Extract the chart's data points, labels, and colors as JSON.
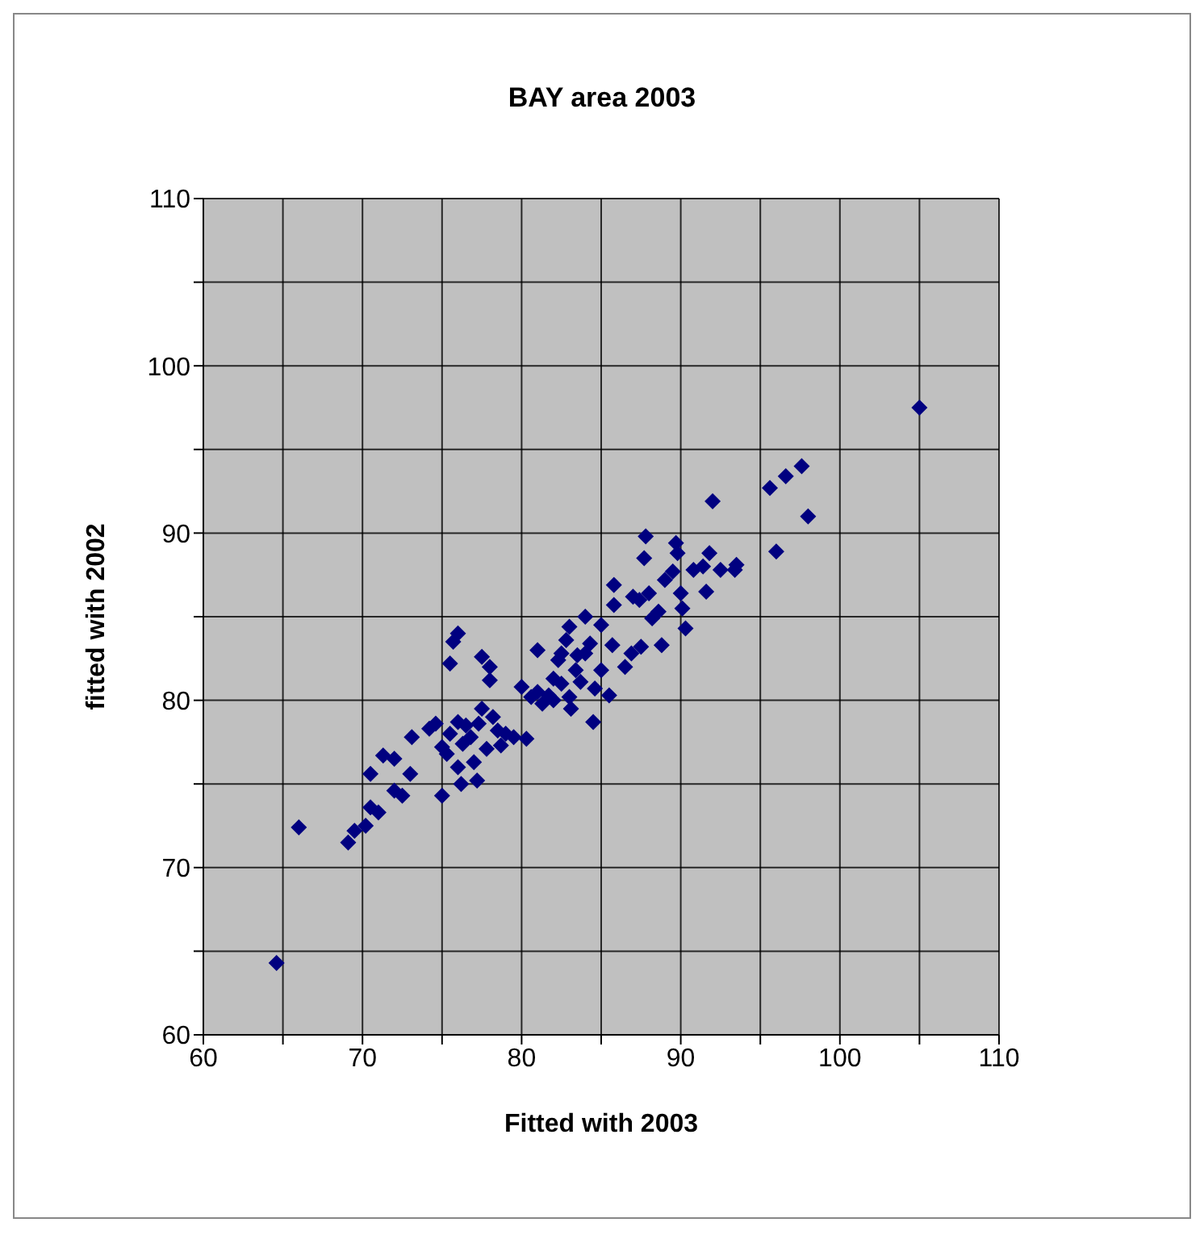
{
  "chart_data": {
    "type": "scatter",
    "title": "BAY area 2003",
    "xlabel": "Fitted with 2003",
    "ylabel": "fitted with 2002",
    "xlim": [
      60,
      110
    ],
    "ylim": [
      60,
      110
    ],
    "xticks": [
      60,
      {
        "value": 65,
        "label": null
      },
      70,
      {
        "value": 75,
        "label": null
      },
      80,
      {
        "value": 85,
        "label": null
      },
      90,
      {
        "value": 95,
        "label": null
      },
      100,
      {
        "value": 105,
        "label": null
      },
      110
    ],
    "yticks": [
      60,
      {
        "value": 65,
        "label": null
      },
      70,
      {
        "value": 75,
        "label": null
      },
      80,
      {
        "value": 85,
        "label": null
      },
      90,
      {
        "value": 95,
        "label": null
      },
      100,
      {
        "value": 105,
        "label": null
      },
      110
    ],
    "grid": true,
    "marker": "diamond",
    "legend": false,
    "series": [
      {
        "color": "#000080",
        "x": [
          64.6,
          66,
          69.1,
          69.5,
          70.2,
          70.5,
          70.5,
          71,
          71.3,
          72,
          72,
          72.5,
          73,
          73.1,
          74.2,
          74.6,
          75,
          75,
          75.3,
          75.5,
          75.5,
          75.7,
          76,
          76,
          76,
          76.2,
          76.3,
          76.5,
          76.8,
          77,
          77.2,
          77.3,
          77.5,
          77.5,
          77.8,
          78,
          78,
          78.2,
          78.5,
          78.7,
          79,
          79.5,
          80,
          80.3,
          80.6,
          81,
          81,
          81.3,
          81.7,
          82,
          82,
          82.3,
          82.5,
          82.5,
          82.8,
          83,
          83,
          83.1,
          83.4,
          83.5,
          83.7,
          84,
          84,
          84.3,
          84.5,
          84.6,
          85,
          85,
          85.5,
          85.7,
          85.8,
          85.8,
          86.5,
          86.9,
          87,
          87.4,
          87.5,
          87.7,
          87.8,
          88,
          88.2,
          88.6,
          88.8,
          89,
          89.5,
          89.7,
          89.8,
          90,
          90.1,
          90.3,
          90.8,
          91.4,
          91.6,
          91.8,
          92,
          92.5,
          93.4,
          93.5,
          95.6,
          96,
          96.6,
          97.6,
          98,
          105
        ],
        "values": [
          64.3,
          72.4,
          71.5,
          72.2,
          72.5,
          73.6,
          75.6,
          73.3,
          76.7,
          76.5,
          74.6,
          74.3,
          75.6,
          77.8,
          78.3,
          78.6,
          74.3,
          77.2,
          76.8,
          78,
          82.2,
          83.5,
          84,
          78.7,
          76,
          75,
          77.4,
          78.5,
          77.8,
          76.3,
          75.2,
          78.6,
          82.6,
          79.5,
          77.1,
          82,
          81.2,
          79,
          78.2,
          77.3,
          78,
          77.8,
          80.8,
          77.7,
          80.2,
          83,
          80.5,
          79.8,
          80.3,
          81.3,
          80,
          82.4,
          82.8,
          81,
          83.6,
          84.4,
          80.2,
          79.5,
          81.8,
          82.7,
          81.1,
          85,
          82.8,
          83.4,
          78.7,
          80.7,
          84.5,
          81.8,
          80.3,
          83.3,
          86.9,
          85.7,
          82,
          82.8,
          86.2,
          86,
          83.2,
          88.5,
          89.8,
          86.4,
          84.9,
          85.3,
          83.3,
          87.2,
          87.7,
          89.4,
          88.8,
          86.4,
          85.5,
          84.3,
          87.8,
          88,
          86.5,
          88.8,
          91.9,
          87.8,
          87.8,
          88.1,
          92.7,
          88.9,
          93.4,
          94,
          91,
          97.5
        ]
      }
    ]
  }
}
